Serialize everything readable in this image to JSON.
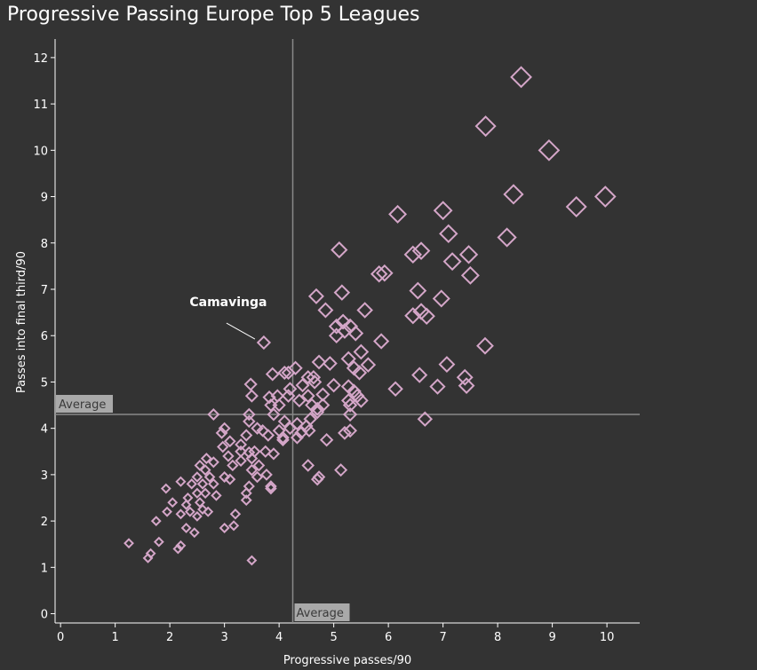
{
  "chart_data": {
    "type": "scatter",
    "title": "Progressive Passing Europe Top 5 Leagues",
    "xlabel": "Progressive passes/90",
    "ylabel": "Passes into final third/90",
    "xlim": [
      -0.1,
      10.6
    ],
    "ylim": [
      -0.2,
      12.4
    ],
    "xticks": [
      0,
      1,
      2,
      3,
      4,
      5,
      6,
      7,
      8,
      9,
      10
    ],
    "yticks": [
      0,
      1,
      2,
      3,
      4,
      5,
      6,
      7,
      8,
      9,
      10,
      11,
      12
    ],
    "marker": "diamond",
    "marker_color": "#d4a6c8",
    "grid": false,
    "average_x": 4.25,
    "average_y": 4.3,
    "average_label_x": "Average",
    "average_label_y": "Average",
    "annotation": {
      "label": "Camavinga",
      "x": 3.72,
      "y": 5.85
    },
    "points": [
      [
        8.43,
        11.58
      ],
      [
        7.78,
        10.52
      ],
      [
        8.94,
        10.0
      ],
      [
        8.29,
        9.05
      ],
      [
        9.44,
        8.78
      ],
      [
        9.97,
        9.0
      ],
      [
        7.0,
        8.7
      ],
      [
        6.17,
        8.62
      ],
      [
        7.1,
        8.2
      ],
      [
        8.17,
        8.12
      ],
      [
        5.1,
        7.85
      ],
      [
        6.6,
        7.83
      ],
      [
        6.45,
        7.75
      ],
      [
        7.17,
        7.6
      ],
      [
        7.47,
        7.75
      ],
      [
        7.5,
        7.3
      ],
      [
        5.83,
        7.33
      ],
      [
        5.93,
        7.35
      ],
      [
        4.68,
        6.85
      ],
      [
        5.15,
        6.93
      ],
      [
        6.54,
        6.97
      ],
      [
        6.97,
        6.8
      ],
      [
        4.85,
        6.55
      ],
      [
        5.57,
        6.55
      ],
      [
        6.45,
        6.43
      ],
      [
        6.6,
        6.52
      ],
      [
        6.7,
        6.42
      ],
      [
        5.05,
        6.2
      ],
      [
        5.17,
        6.3
      ],
      [
        5.3,
        6.2
      ],
      [
        5.05,
        6.0
      ],
      [
        5.2,
        6.1
      ],
      [
        5.4,
        6.05
      ],
      [
        3.72,
        5.85
      ],
      [
        5.87,
        5.88
      ],
      [
        7.77,
        5.78
      ],
      [
        5.5,
        5.65
      ],
      [
        5.27,
        5.5
      ],
      [
        4.73,
        5.43
      ],
      [
        4.93,
        5.4
      ],
      [
        5.63,
        5.37
      ],
      [
        7.07,
        5.38
      ],
      [
        4.1,
        5.2
      ],
      [
        4.3,
        5.3
      ],
      [
        4.17,
        5.2
      ],
      [
        5.37,
        5.3
      ],
      [
        5.47,
        5.2
      ],
      [
        4.53,
        5.1
      ],
      [
        4.63,
        5.1
      ],
      [
        6.57,
        5.15
      ],
      [
        7.4,
        5.1
      ],
      [
        3.48,
        4.95
      ],
      [
        3.88,
        5.17
      ],
      [
        4.17,
        4.7
      ],
      [
        4.43,
        4.93
      ],
      [
        4.65,
        5.0
      ],
      [
        5.0,
        4.93
      ],
      [
        5.27,
        4.9
      ],
      [
        5.37,
        4.8
      ],
      [
        6.13,
        4.85
      ],
      [
        6.9,
        4.9
      ],
      [
        7.43,
        4.92
      ],
      [
        3.5,
        4.7
      ],
      [
        3.82,
        4.67
      ],
      [
        3.97,
        4.7
      ],
      [
        4.2,
        4.85
      ],
      [
        4.53,
        4.7
      ],
      [
        4.8,
        4.73
      ],
      [
        5.27,
        4.6
      ],
      [
        5.43,
        4.7
      ],
      [
        5.5,
        4.6
      ],
      [
        3.85,
        4.5
      ],
      [
        4.0,
        4.5
      ],
      [
        4.37,
        4.6
      ],
      [
        4.6,
        4.5
      ],
      [
        4.7,
        4.42
      ],
      [
        4.8,
        4.5
      ],
      [
        5.3,
        4.5
      ],
      [
        3.45,
        4.3
      ],
      [
        3.9,
        4.3
      ],
      [
        4.7,
        4.35
      ],
      [
        4.57,
        4.2
      ],
      [
        5.3,
        4.3
      ],
      [
        6.67,
        4.2
      ],
      [
        2.8,
        4.3
      ],
      [
        3.45,
        4.15
      ],
      [
        4.1,
        4.15
      ],
      [
        4.2,
        4.0
      ],
      [
        4.33,
        4.1
      ],
      [
        4.5,
        4.05
      ],
      [
        3.6,
        4.0
      ],
      [
        3.7,
        3.95
      ],
      [
        4.0,
        3.95
      ],
      [
        4.4,
        3.9
      ],
      [
        4.07,
        3.8
      ],
      [
        4.55,
        3.95
      ],
      [
        5.2,
        3.9
      ],
      [
        5.3,
        3.95
      ],
      [
        3.0,
        4.0
      ],
      [
        2.95,
        3.9
      ],
      [
        3.4,
        3.85
      ],
      [
        3.8,
        3.85
      ],
      [
        4.07,
        3.75
      ],
      [
        4.33,
        3.8
      ],
      [
        4.87,
        3.75
      ],
      [
        3.1,
        3.72
      ],
      [
        3.3,
        3.65
      ],
      [
        3.55,
        3.5
      ],
      [
        2.97,
        3.6
      ],
      [
        3.3,
        3.5
      ],
      [
        3.45,
        3.48
      ],
      [
        3.75,
        3.5
      ],
      [
        3.9,
        3.45
      ],
      [
        3.07,
        3.4
      ],
      [
        3.5,
        3.35
      ],
      [
        3.3,
        3.3
      ],
      [
        2.67,
        3.35
      ],
      [
        2.8,
        3.27
      ],
      [
        2.55,
        3.2
      ],
      [
        2.65,
        3.1
      ],
      [
        3.15,
        3.2
      ],
      [
        3.5,
        3.1
      ],
      [
        3.63,
        3.2
      ],
      [
        4.53,
        3.2
      ],
      [
        3.0,
        2.95
      ],
      [
        2.5,
        2.95
      ],
      [
        2.73,
        2.95
      ],
      [
        3.1,
        2.9
      ],
      [
        3.6,
        2.95
      ],
      [
        3.77,
        3.0
      ],
      [
        4.73,
        2.95
      ],
      [
        5.13,
        3.1
      ],
      [
        2.4,
        2.8
      ],
      [
        2.6,
        2.8
      ],
      [
        2.8,
        2.8
      ],
      [
        3.45,
        2.75
      ],
      [
        3.85,
        2.75
      ],
      [
        4.7,
        2.9
      ],
      [
        2.2,
        2.85
      ],
      [
        1.93,
        2.7
      ],
      [
        2.5,
        2.6
      ],
      [
        2.65,
        2.6
      ],
      [
        2.33,
        2.5
      ],
      [
        3.4,
        2.6
      ],
      [
        3.85,
        2.7
      ],
      [
        2.05,
        2.4
      ],
      [
        2.3,
        2.35
      ],
      [
        2.55,
        2.4
      ],
      [
        2.85,
        2.55
      ],
      [
        3.4,
        2.45
      ],
      [
        1.95,
        2.2
      ],
      [
        2.2,
        2.15
      ],
      [
        2.37,
        2.2
      ],
      [
        2.5,
        2.1
      ],
      [
        2.6,
        2.25
      ],
      [
        2.7,
        2.2
      ],
      [
        3.2,
        2.15
      ],
      [
        3.0,
        1.85
      ],
      [
        3.17,
        1.9
      ],
      [
        1.75,
        2.0
      ],
      [
        2.3,
        1.85
      ],
      [
        2.45,
        1.75
      ],
      [
        1.25,
        1.52
      ],
      [
        1.8,
        1.55
      ],
      [
        1.65,
        1.3
      ],
      [
        1.6,
        1.2
      ],
      [
        2.15,
        1.4
      ],
      [
        2.2,
        1.47
      ],
      [
        3.5,
        1.15
      ]
    ]
  }
}
